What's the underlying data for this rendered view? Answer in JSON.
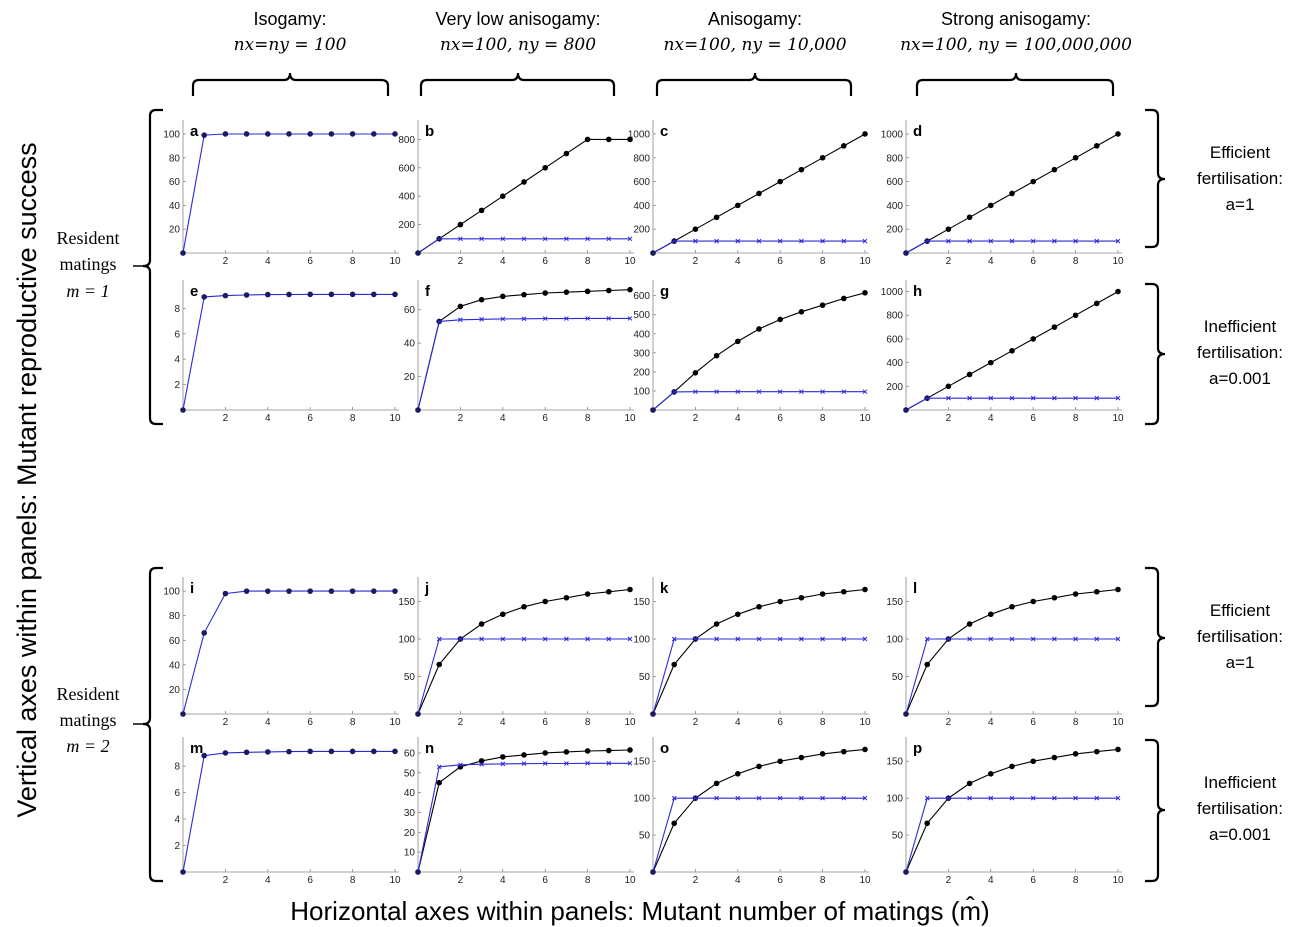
{
  "figure": {
    "y_axis_label": "Vertical axes within panels: Mutant reproductive success",
    "x_axis_label": "Horizontal axes within panels: Mutant number of matings (m̂)",
    "column_headers": [
      {
        "title": "Isogamy:",
        "formula": "nx=ny = 100"
      },
      {
        "title": "Very low anisogamy:",
        "formula": "nx=100, ny = 800"
      },
      {
        "title": "Anisogamy:",
        "formula": "nx=100, ny = 10,000"
      },
      {
        "title": "Strong anisogamy:",
        "formula": "nx=100, ny = 100,000,000"
      }
    ],
    "resident_groups": [
      {
        "line1": "Resident",
        "line2": "matings",
        "line3": "m = 1"
      },
      {
        "line1": "Resident",
        "line2": "matings",
        "line3": "m = 2"
      }
    ],
    "fertilisation_labels": [
      {
        "line1": "Efficient",
        "line2": "fertilisation:",
        "line3": "a=1"
      },
      {
        "line1": "Inefficient",
        "line2": "fertilisation:",
        "line3": "a=0.001"
      },
      {
        "line1": "Efficient",
        "line2": "fertilisation:",
        "line3": "a=1"
      },
      {
        "line1": "Inefficient",
        "line2": "fertilisation:",
        "line3": "a=0.001"
      }
    ]
  },
  "colors": {
    "resident_series": "#000000",
    "mutant_series": "#2b2bd6"
  },
  "chart_data": [
    {
      "panel": "a",
      "type": "line",
      "x": [
        0,
        1,
        2,
        3,
        4,
        5,
        6,
        7,
        8,
        9,
        10
      ],
      "xticks": [
        2,
        4,
        6,
        8,
        10
      ],
      "yticks": [
        20,
        40,
        60,
        80,
        100
      ],
      "ylim": [
        0,
        105
      ],
      "series": [
        {
          "values": [
            0,
            99,
            100,
            100,
            100,
            100,
            100,
            100,
            100,
            100,
            100
          ]
        }
      ]
    },
    {
      "panel": "b",
      "type": "line",
      "x": [
        0,
        1,
        2,
        3,
        4,
        5,
        6,
        7,
        8,
        9,
        10
      ],
      "xticks": [
        2,
        4,
        6,
        8,
        10
      ],
      "yticks": [
        200,
        400,
        600,
        800
      ],
      "ylim": [
        0,
        880
      ],
      "series": [
        {
          "values": [
            0,
            100,
            200,
            300,
            400,
            500,
            600,
            700,
            800,
            800,
            800
          ]
        },
        {
          "values": [
            0,
            100,
            100,
            100,
            100,
            100,
            100,
            100,
            100,
            100,
            100
          ]
        }
      ]
    },
    {
      "panel": "c",
      "type": "line",
      "x": [
        0,
        1,
        2,
        3,
        4,
        5,
        6,
        7,
        8,
        9,
        10
      ],
      "xticks": [
        2,
        4,
        6,
        8,
        10
      ],
      "yticks": [
        200,
        400,
        600,
        800,
        1000
      ],
      "ylim": [
        0,
        1050
      ],
      "series": [
        {
          "values": [
            0,
            100,
            200,
            300,
            400,
            500,
            600,
            700,
            800,
            900,
            1000
          ]
        },
        {
          "values": [
            0,
            100,
            100,
            100,
            100,
            100,
            100,
            100,
            100,
            100,
            100
          ]
        }
      ]
    },
    {
      "panel": "d",
      "type": "line",
      "x": [
        0,
        1,
        2,
        3,
        4,
        5,
        6,
        7,
        8,
        9,
        10
      ],
      "xticks": [
        2,
        4,
        6,
        8,
        10
      ],
      "yticks": [
        200,
        400,
        600,
        800,
        1000
      ],
      "ylim": [
        0,
        1050
      ],
      "series": [
        {
          "values": [
            0,
            100,
            200,
            300,
            400,
            500,
            600,
            700,
            800,
            900,
            1000
          ]
        },
        {
          "values": [
            0,
            100,
            100,
            100,
            100,
            100,
            100,
            100,
            100,
            100,
            100
          ]
        }
      ]
    },
    {
      "panel": "e",
      "type": "line",
      "x": [
        0,
        1,
        2,
        3,
        4,
        5,
        6,
        7,
        8,
        9,
        10
      ],
      "xticks": [
        2,
        4,
        6,
        8,
        10
      ],
      "yticks": [
        2,
        4,
        6,
        8
      ],
      "ylim": [
        0,
        9.6
      ],
      "series": [
        {
          "values": [
            0,
            8.9,
            9.0,
            9.05,
            9.08,
            9.09,
            9.1,
            9.1,
            9.1,
            9.1,
            9.1
          ]
        }
      ]
    },
    {
      "panel": "f",
      "type": "line",
      "x": [
        0,
        1,
        2,
        3,
        4,
        5,
        6,
        7,
        8,
        9,
        10
      ],
      "xticks": [
        2,
        4,
        6,
        8,
        10
      ],
      "yticks": [
        20,
        40,
        60
      ],
      "ylim": [
        0,
        73
      ],
      "series": [
        {
          "values": [
            0,
            53,
            62,
            66,
            68,
            69,
            70,
            70.5,
            71,
            71.5,
            72
          ]
        },
        {
          "values": [
            0,
            53,
            54,
            54.3,
            54.5,
            54.6,
            54.7,
            54.7,
            54.8,
            54.8,
            54.8
          ]
        }
      ]
    },
    {
      "panel": "g",
      "type": "line",
      "x": [
        0,
        1,
        2,
        3,
        4,
        5,
        6,
        7,
        8,
        9,
        10
      ],
      "xticks": [
        2,
        4,
        6,
        8,
        10
      ],
      "yticks": [
        100,
        200,
        300,
        400,
        500,
        600
      ],
      "ylim": [
        0,
        640
      ],
      "series": [
        {
          "values": [
            0,
            95,
            195,
            285,
            360,
            425,
            475,
            515,
            550,
            585,
            615
          ]
        },
        {
          "values": [
            0,
            95,
            96,
            96,
            96,
            96,
            96,
            96,
            96,
            96,
            96
          ]
        }
      ]
    },
    {
      "panel": "h",
      "type": "line",
      "x": [
        0,
        1,
        2,
        3,
        4,
        5,
        6,
        7,
        8,
        9,
        10
      ],
      "xticks": [
        2,
        4,
        6,
        8,
        10
      ],
      "yticks": [
        200,
        400,
        600,
        800,
        1000
      ],
      "ylim": [
        0,
        1030
      ],
      "series": [
        {
          "values": [
            0,
            100,
            200,
            300,
            400,
            500,
            600,
            700,
            800,
            900,
            1000
          ]
        },
        {
          "values": [
            0,
            100,
            100,
            100,
            100,
            100,
            100,
            100,
            100,
            100,
            100
          ]
        }
      ]
    },
    {
      "panel": "i",
      "type": "line",
      "x": [
        0,
        1,
        2,
        3,
        4,
        5,
        6,
        7,
        8,
        9,
        10
      ],
      "xticks": [
        2,
        4,
        6,
        8,
        10
      ],
      "yticks": [
        20,
        40,
        60,
        80,
        100
      ],
      "ylim": [
        0,
        105
      ],
      "series": [
        {
          "values": [
            0,
            66,
            98,
            100,
            100,
            100,
            100,
            100,
            100,
            100,
            100
          ]
        }
      ]
    },
    {
      "panel": "j",
      "type": "line",
      "x": [
        0,
        1,
        2,
        3,
        4,
        5,
        6,
        7,
        8,
        9,
        10
      ],
      "xticks": [
        2,
        4,
        6,
        8,
        10
      ],
      "yticks": [
        50,
        100,
        150
      ],
      "ylim": [
        0,
        172
      ],
      "series": [
        {
          "values": [
            0,
            66,
            100,
            120,
            133,
            143,
            150,
            155,
            160,
            163,
            166
          ]
        },
        {
          "values": [
            0,
            100,
            100,
            100,
            100,
            100,
            100,
            100,
            100,
            100,
            100
          ]
        }
      ]
    },
    {
      "panel": "k",
      "type": "line",
      "x": [
        0,
        1,
        2,
        3,
        4,
        5,
        6,
        7,
        8,
        9,
        10
      ],
      "xticks": [
        2,
        4,
        6,
        8,
        10
      ],
      "yticks": [
        50,
        100,
        150
      ],
      "ylim": [
        0,
        172
      ],
      "series": [
        {
          "values": [
            0,
            66,
            100,
            120,
            133,
            143,
            150,
            155,
            160,
            163,
            166
          ]
        },
        {
          "values": [
            0,
            100,
            100,
            100,
            100,
            100,
            100,
            100,
            100,
            100,
            100
          ]
        }
      ]
    },
    {
      "panel": "l",
      "type": "line",
      "x": [
        0,
        1,
        2,
        3,
        4,
        5,
        6,
        7,
        8,
        9,
        10
      ],
      "xticks": [
        2,
        4,
        6,
        8,
        10
      ],
      "yticks": [
        50,
        100,
        150
      ],
      "ylim": [
        0,
        172
      ],
      "series": [
        {
          "values": [
            0,
            66,
            100,
            120,
            133,
            143,
            150,
            155,
            160,
            163,
            166
          ]
        },
        {
          "values": [
            0,
            100,
            100,
            100,
            100,
            100,
            100,
            100,
            100,
            100,
            100
          ]
        }
      ]
    },
    {
      "panel": "m",
      "type": "line",
      "x": [
        0,
        1,
        2,
        3,
        4,
        5,
        6,
        7,
        8,
        9,
        10
      ],
      "xticks": [
        2,
        4,
        6,
        8,
        10
      ],
      "yticks": [
        2,
        4,
        6,
        8
      ],
      "ylim": [
        0,
        9.6
      ],
      "series": [
        {
          "values": [
            0,
            8.8,
            9.0,
            9.05,
            9.08,
            9.1,
            9.12,
            9.12,
            9.12,
            9.12,
            9.12
          ]
        }
      ]
    },
    {
      "panel": "n",
      "type": "line",
      "x": [
        0,
        1,
        2,
        3,
        4,
        5,
        6,
        7,
        8,
        9,
        10
      ],
      "xticks": [
        2,
        4,
        6,
        8,
        10
      ],
      "yticks": [
        10,
        20,
        30,
        40,
        50,
        60
      ],
      "ylim": [
        0,
        64
      ],
      "series": [
        {
          "values": [
            0,
            45,
            53,
            56,
            58,
            59,
            60,
            60.5,
            61,
            61.2,
            61.5
          ]
        },
        {
          "values": [
            0,
            53,
            54,
            54.3,
            54.5,
            54.6,
            54.7,
            54.7,
            54.8,
            54.8,
            54.8
          ]
        }
      ]
    },
    {
      "panel": "o",
      "type": "line",
      "x": [
        0,
        1,
        2,
        3,
        4,
        5,
        6,
        7,
        8,
        9,
        10
      ],
      "xticks": [
        2,
        4,
        6,
        8,
        10
      ],
      "yticks": [
        50,
        100,
        150
      ],
      "ylim": [
        0,
        172
      ],
      "series": [
        {
          "values": [
            0,
            66,
            100,
            120,
            133,
            143,
            150,
            155,
            160,
            163,
            166
          ]
        },
        {
          "values": [
            0,
            100,
            100,
            100,
            100,
            100,
            100,
            100,
            100,
            100,
            100
          ]
        }
      ]
    },
    {
      "panel": "p",
      "type": "line",
      "x": [
        0,
        1,
        2,
        3,
        4,
        5,
        6,
        7,
        8,
        9,
        10
      ],
      "xticks": [
        2,
        4,
        6,
        8,
        10
      ],
      "yticks": [
        50,
        100,
        150
      ],
      "ylim": [
        0,
        172
      ],
      "series": [
        {
          "values": [
            0,
            66,
            100,
            120,
            133,
            143,
            150,
            155,
            160,
            163,
            166
          ]
        },
        {
          "values": [
            0,
            100,
            100,
            100,
            100,
            100,
            100,
            100,
            100,
            100,
            100
          ]
        }
      ]
    }
  ]
}
